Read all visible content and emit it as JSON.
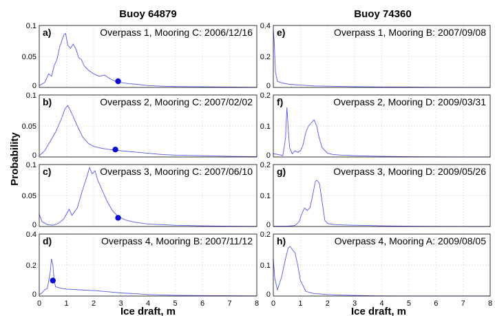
{
  "figure": {
    "column_titles": [
      "Buoy 64879",
      "Buoy 74360"
    ],
    "ylabel": "Probability",
    "xlabel": "Ice draft, m"
  },
  "chart_data": [
    {
      "type": "line",
      "panel": "a)",
      "title": "Overpass 1, Mooring C: 2006/12/16",
      "xlim": [
        0,
        8
      ],
      "ylim": [
        0,
        0.1
      ],
      "yticks": [
        "0",
        "0.05",
        "0.1"
      ],
      "xticks": [
        "0",
        "1",
        "2",
        "3",
        "4",
        "5",
        "6",
        "7",
        "8"
      ],
      "series": [
        {
          "x": [
            0,
            0.2,
            0.35,
            0.45,
            0.55,
            0.65,
            0.75,
            0.85,
            0.92,
            0.97,
            1.05,
            1.15,
            1.25,
            1.35,
            1.45,
            1.55,
            1.65,
            1.8,
            2.0,
            2.2,
            2.4,
            2.6,
            2.8,
            3.0,
            3.3,
            3.6,
            4.0,
            4.5,
            5.0,
            6.0,
            7.0,
            8.0
          ],
          "y": [
            0.003,
            0.008,
            0.022,
            0.018,
            0.035,
            0.045,
            0.065,
            0.078,
            0.086,
            0.087,
            0.068,
            0.063,
            0.07,
            0.062,
            0.048,
            0.045,
            0.035,
            0.028,
            0.022,
            0.018,
            0.02,
            0.014,
            0.01,
            0.008,
            0.006,
            0.005,
            0.003,
            0.002,
            0.0015,
            0.001,
            0.0005,
            0.0002
          ]
        }
      ],
      "marker": {
        "x": 2.9,
        "y": 0.01
      }
    },
    {
      "type": "line",
      "panel": "b)",
      "title": "Overpass 2, Mooring C: 2007/02/02",
      "xlim": [
        0,
        8
      ],
      "ylim": [
        0,
        0.1
      ],
      "yticks": [
        "0",
        "0.05",
        "0.1"
      ],
      "xticks": [
        "0",
        "1",
        "2",
        "3",
        "4",
        "5",
        "6",
        "7",
        "8"
      ],
      "series": [
        {
          "x": [
            0,
            0.2,
            0.4,
            0.6,
            0.8,
            0.95,
            1.05,
            1.2,
            1.4,
            1.6,
            1.8,
            2.0,
            2.3,
            2.6,
            3.0,
            3.5,
            4.0,
            4.5,
            5.0,
            6.0,
            7.0,
            8.0
          ],
          "y": [
            0.002,
            0.01,
            0.025,
            0.04,
            0.06,
            0.078,
            0.083,
            0.07,
            0.05,
            0.032,
            0.022,
            0.017,
            0.014,
            0.012,
            0.01,
            0.008,
            0.006,
            0.004,
            0.003,
            0.002,
            0.001,
            0.0005
          ]
        }
      ],
      "marker": {
        "x": 2.8,
        "y": 0.012
      }
    },
    {
      "type": "line",
      "panel": "c)",
      "title": "Overpass 3, Mooring C: 2007/06/10",
      "xlim": [
        0,
        8
      ],
      "ylim": [
        0,
        0.1
      ],
      "yticks": [
        "0",
        "0.05",
        "0.1"
      ],
      "xticks": [
        "0",
        "1",
        "2",
        "3",
        "4",
        "5",
        "6",
        "7",
        "8"
      ],
      "series": [
        {
          "x": [
            0,
            0.1,
            0.3,
            0.5,
            0.7,
            0.9,
            1.0,
            1.1,
            1.2,
            1.4,
            1.6,
            1.75,
            1.85,
            1.95,
            2.05,
            2.15,
            2.3,
            2.5,
            2.7,
            2.9,
            3.2,
            3.5,
            4.0,
            4.5,
            5.0,
            6.0,
            7.0,
            8.0
          ],
          "y": [
            0.02,
            0.008,
            0.003,
            0.002,
            0.005,
            0.012,
            0.02,
            0.028,
            0.018,
            0.03,
            0.06,
            0.08,
            0.095,
            0.085,
            0.09,
            0.075,
            0.06,
            0.04,
            0.025,
            0.016,
            0.01,
            0.007,
            0.004,
            0.003,
            0.002,
            0.001,
            0.0005,
            0.0002
          ]
        }
      ],
      "marker": {
        "x": 2.9,
        "y": 0.014
      }
    },
    {
      "type": "line",
      "panel": "d)",
      "title": "Overpass 4, Mooring B: 2007/11/12",
      "xlim": [
        0,
        8
      ],
      "ylim": [
        0,
        0.4
      ],
      "yticks": [
        "0",
        "0.2",
        "0.4"
      ],
      "xticks": [
        "0",
        "1",
        "2",
        "3",
        "4",
        "5",
        "6",
        "7",
        "8"
      ],
      "series": [
        {
          "x": [
            0,
            0.1,
            0.2,
            0.3,
            0.4,
            0.45,
            0.5,
            0.55,
            0.6,
            0.8,
            1.0,
            1.5,
            2.0,
            2.5,
            3.0,
            3.5,
            4.0,
            4.5,
            5.0,
            6.0,
            7.0,
            8.0
          ],
          "y": [
            0.01,
            0.02,
            0.04,
            0.05,
            0.15,
            0.24,
            0.2,
            0.1,
            0.06,
            0.05,
            0.045,
            0.04,
            0.035,
            0.028,
            0.02,
            0.015,
            0.01,
            0.007,
            0.005,
            0.003,
            0.002,
            0.001
          ]
        }
      ],
      "marker": {
        "x": 0.5,
        "y": 0.1
      }
    },
    {
      "type": "line",
      "panel": "e)",
      "title": "Overpass 1, Mooring B: 2007/09/08",
      "xlim": [
        0,
        8
      ],
      "ylim": [
        0,
        0.4
      ],
      "yticks": [
        "0",
        "0.2",
        "0.4"
      ],
      "xticks": [
        "0",
        "1",
        "2",
        "3",
        "4",
        "5",
        "6",
        "7",
        "8"
      ],
      "series": [
        {
          "x": [
            0,
            0.03,
            0.08,
            0.15,
            0.3,
            0.6,
            1.0,
            1.5,
            2.0,
            3.0,
            4.0,
            5.0,
            6.0,
            7.0,
            8.0
          ],
          "y": [
            0.38,
            0.3,
            0.1,
            0.04,
            0.03,
            0.02,
            0.015,
            0.01,
            0.008,
            0.005,
            0.003,
            0.002,
            0.001,
            0.0005,
            0.0002
          ]
        }
      ]
    },
    {
      "type": "line",
      "panel": "f)",
      "title": "Overpass 2, Mooring D: 2009/03/31",
      "xlim": [
        0,
        8
      ],
      "ylim": [
        0,
        0.2
      ],
      "yticks": [
        "0",
        "0.1",
        "0.2"
      ],
      "xticks": [
        "0",
        "1",
        "2",
        "3",
        "4",
        "5",
        "6",
        "7",
        "8"
      ],
      "series": [
        {
          "x": [
            0,
            0.2,
            0.35,
            0.45,
            0.5,
            0.55,
            0.6,
            0.7,
            0.8,
            0.9,
            1.0,
            1.1,
            1.2,
            1.3,
            1.4,
            1.5,
            1.6,
            1.7,
            1.8,
            2.0,
            2.2,
            2.5,
            3.0,
            3.5,
            4.0,
            5.0,
            6.0,
            7.0,
            8.0
          ],
          "y": [
            0.01,
            0.008,
            0.004,
            0.06,
            0.16,
            0.09,
            0.03,
            0.01,
            0.02,
            0.015,
            0.02,
            0.04,
            0.08,
            0.1,
            0.11,
            0.12,
            0.1,
            0.06,
            0.03,
            0.012,
            0.008,
            0.006,
            0.004,
            0.003,
            0.002,
            0.001,
            0.0005,
            0.0002,
            0.0001
          ]
        }
      ]
    },
    {
      "type": "line",
      "panel": "g)",
      "title": "Overpass 3, Mooring D: 2009/05/26",
      "xlim": [
        0,
        8
      ],
      "ylim": [
        0,
        0.2
      ],
      "yticks": [
        "0",
        "0.1",
        "0.2"
      ],
      "xticks": [
        "0",
        "1",
        "2",
        "3",
        "4",
        "5",
        "6",
        "7",
        "8"
      ],
      "series": [
        {
          "x": [
            0,
            0.5,
            0.8,
            0.95,
            1.05,
            1.15,
            1.25,
            1.35,
            1.45,
            1.55,
            1.6,
            1.7,
            1.8,
            1.9,
            2.0,
            2.1,
            2.3,
            2.6,
            3.0,
            3.5,
            4.0,
            5.0,
            6.0,
            7.0,
            8.0
          ],
          "y": [
            0.001,
            0.001,
            0.003,
            0.015,
            0.04,
            0.06,
            0.052,
            0.06,
            0.1,
            0.145,
            0.15,
            0.14,
            0.08,
            0.02,
            0.01,
            0.008,
            0.006,
            0.005,
            0.004,
            0.003,
            0.002,
            0.001,
            0.0005,
            0.0002,
            0.0001
          ]
        }
      ]
    },
    {
      "type": "line",
      "panel": "h)",
      "title": "Overpass 4, Mooring A: 2009/08/05",
      "xlim": [
        0,
        8
      ],
      "ylim": [
        0,
        0.2
      ],
      "yticks": [
        "0",
        "0.1",
        "0.2"
      ],
      "xticks": [
        "0",
        "1",
        "2",
        "3",
        "4",
        "5",
        "6",
        "7",
        "8"
      ],
      "series": [
        {
          "x": [
            0,
            0.05,
            0.15,
            0.3,
            0.45,
            0.55,
            0.62,
            0.7,
            0.8,
            0.9,
            1.0,
            1.2,
            1.5,
            2.0,
            2.5,
            3.0,
            3.5,
            4.0,
            5.0,
            6.0,
            7.0,
            8.0
          ],
          "y": [
            0.12,
            0.06,
            0.02,
            0.06,
            0.12,
            0.155,
            0.16,
            0.15,
            0.14,
            0.1,
            0.05,
            0.015,
            0.008,
            0.005,
            0.003,
            0.002,
            0.001,
            0.0005,
            0.0002,
            0.0001,
            0.0001,
            0.0
          ]
        }
      ]
    }
  ]
}
